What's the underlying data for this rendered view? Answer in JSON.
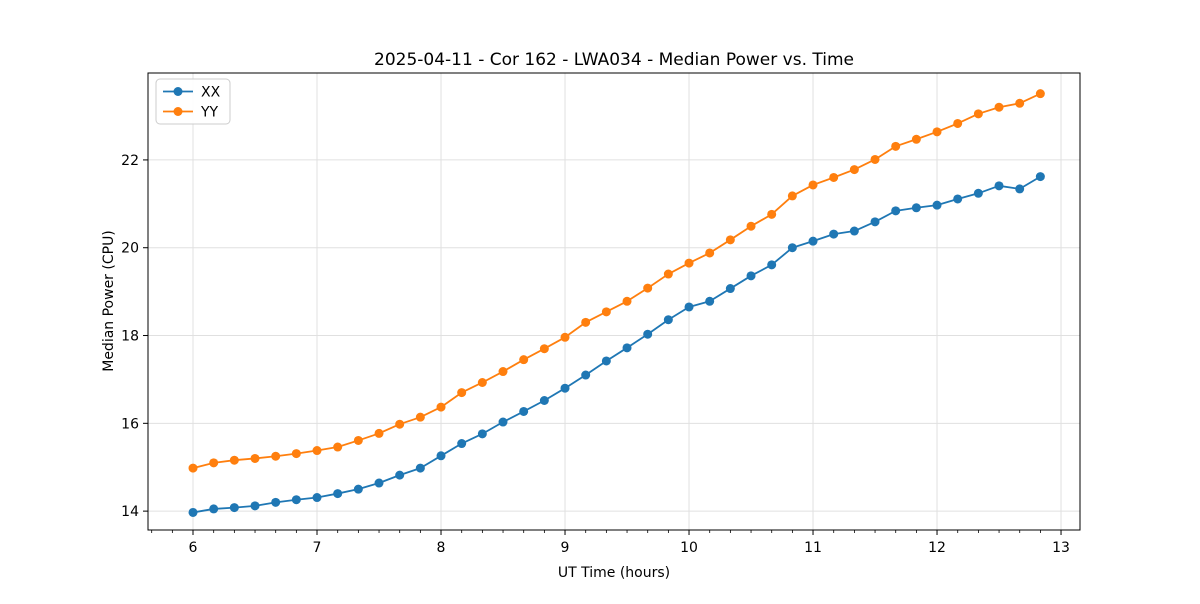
{
  "chart_data": {
    "type": "line",
    "title": "2025-04-11 - Cor 162 - LWA034 - Median Power vs. Time",
    "xlabel": "UT Time (hours)",
    "ylabel": "Median Power (CPU)",
    "xlim": [
      5.637,
      13.153
    ],
    "ylim": [
      13.57,
      23.98
    ],
    "x_ticks": [
      6,
      7,
      8,
      9,
      10,
      11,
      12,
      13
    ],
    "y_ticks": [
      14,
      16,
      18,
      20,
      22
    ],
    "x_minor_step": 0.16667,
    "grid": true,
    "grid_color": "#e0e0e0",
    "legend_position": "upper left",
    "marker": "circle",
    "marker_radius": 4.5,
    "line_width": 1.8,
    "x": [
      6.0,
      6.1667,
      6.3333,
      6.5,
      6.6667,
      6.8333,
      7.0,
      7.1667,
      7.3333,
      7.5,
      7.6667,
      7.8333,
      8.0,
      8.1667,
      8.3333,
      8.5,
      8.6667,
      8.8333,
      9.0,
      9.1667,
      9.3333,
      9.5,
      9.6667,
      9.8333,
      10.0,
      10.1667,
      10.3333,
      10.5,
      10.6667,
      10.8333,
      11.0,
      11.1667,
      11.3333,
      11.5,
      11.6667,
      11.8333,
      12.0,
      12.1667,
      12.3333,
      12.5,
      12.6667,
      12.8333
    ],
    "series": [
      {
        "name": "XX",
        "color": "#1f77b4",
        "values": [
          13.97,
          14.05,
          14.08,
          14.12,
          14.2,
          14.26,
          14.31,
          14.4,
          14.5,
          14.64,
          14.82,
          14.98,
          15.26,
          15.54,
          15.76,
          16.03,
          16.27,
          16.52,
          16.8,
          17.1,
          17.42,
          17.72,
          18.03,
          18.36,
          18.65,
          18.78,
          19.07,
          19.36,
          19.61,
          20.0,
          20.15,
          20.31,
          20.38,
          20.59,
          20.84,
          20.91,
          20.97,
          21.11,
          21.24,
          21.41,
          21.34,
          21.62
        ]
      },
      {
        "name": "YY",
        "color": "#ff7f0e",
        "values": [
          14.98,
          15.1,
          15.16,
          15.2,
          15.25,
          15.31,
          15.38,
          15.46,
          15.61,
          15.77,
          15.98,
          16.14,
          16.37,
          16.7,
          16.93,
          17.18,
          17.45,
          17.7,
          17.96,
          18.3,
          18.54,
          18.78,
          19.08,
          19.4,
          19.65,
          19.88,
          20.18,
          20.49,
          20.76,
          21.18,
          21.43,
          21.6,
          21.78,
          22.01,
          22.31,
          22.47,
          22.64,
          22.83,
          23.05,
          23.2,
          23.29,
          23.51
        ]
      }
    ]
  }
}
